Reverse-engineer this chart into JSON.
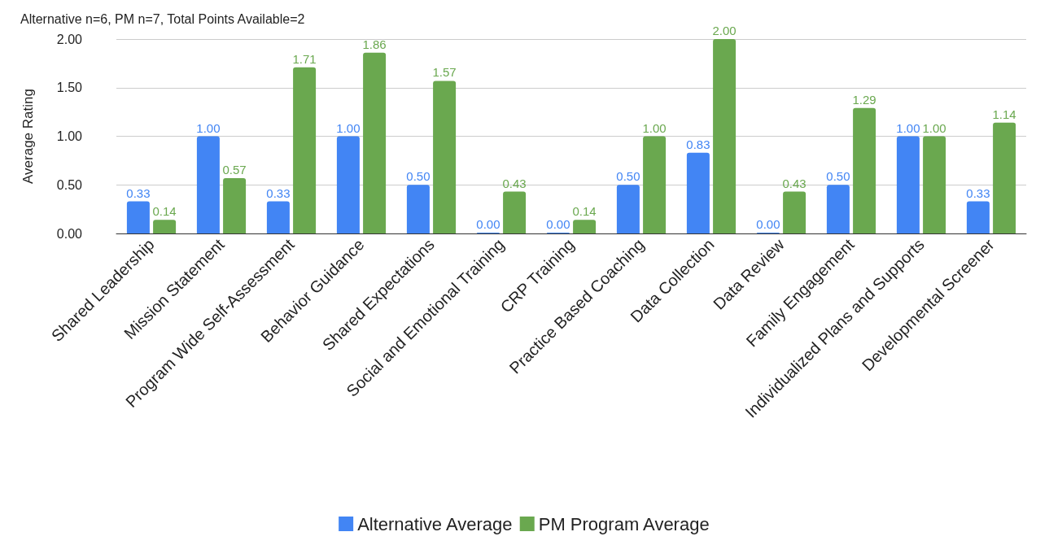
{
  "chart_data": {
    "type": "bar",
    "subtitle": "Alternative n=6, PM n=7, Total Points Available=2",
    "ylabel": "Average Rating",
    "categories": [
      "Shared Leadership",
      "Mission Statement",
      "Program Wide Self-Assessment",
      "Behavior Guidance",
      "Shared Expectations",
      "Social and Emotional Training",
      "CRP Training",
      "Practice Based Coaching",
      "Data Collection",
      "Data Review",
      "Family Engagement",
      "Individualized Plans and Supports",
      "Developmental Screener"
    ],
    "series": [
      {
        "name": "Alternative Average",
        "color": "#4285f4",
        "values": [
          0.33,
          1.0,
          0.33,
          1.0,
          0.5,
          0.0,
          0.0,
          0.5,
          0.83,
          0.0,
          0.5,
          1.0,
          0.33
        ],
        "value_labels": [
          "0.33",
          "1.00",
          "0.33",
          "1.00",
          "0.50",
          "0.00",
          "0.00",
          "0.50",
          "0.83",
          "0.00",
          "0.50",
          "1.00",
          "0.33"
        ]
      },
      {
        "name": "PM Program Average",
        "color": "#6aa84f",
        "values": [
          0.14,
          0.57,
          1.71,
          1.86,
          1.57,
          0.43,
          0.14,
          1.0,
          2.0,
          0.43,
          1.29,
          1.0,
          1.14
        ],
        "value_labels": [
          "0.14",
          "0.57",
          "1.71",
          "1.86",
          "1.57",
          "0.43",
          "0.14",
          "1.00",
          "2.00",
          "0.43",
          "1.29",
          "1.00",
          "1.14"
        ]
      }
    ],
    "ylim": [
      0,
      2
    ],
    "yticks": [
      {
        "value": 0,
        "label": "0.00"
      },
      {
        "value": 0.5,
        "label": "0.50"
      },
      {
        "value": 1,
        "label": "1.00"
      },
      {
        "value": 1.5,
        "label": "1.50"
      },
      {
        "value": 2,
        "label": "2.00"
      }
    ],
    "grid": "y",
    "legend": "bottom"
  }
}
